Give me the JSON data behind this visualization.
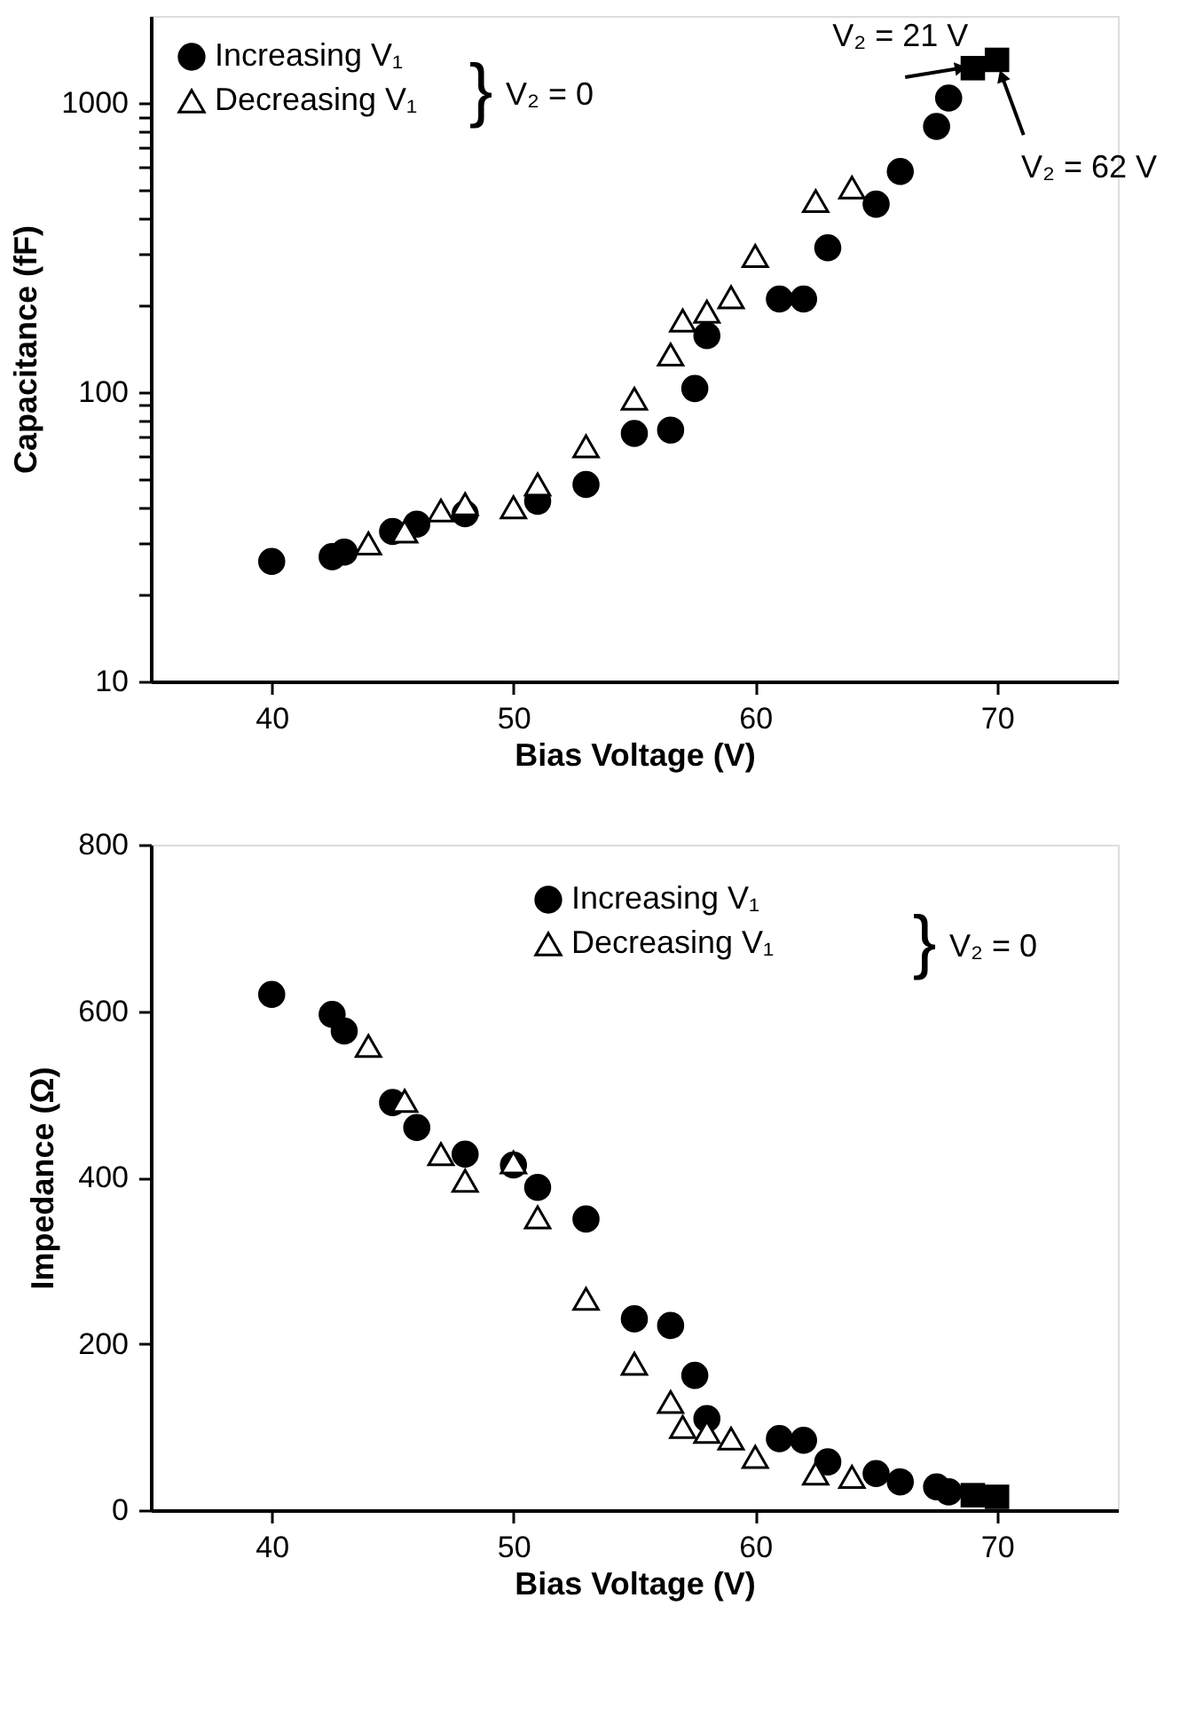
{
  "chart_data": [
    {
      "type": "scatter",
      "xlabel": "Bias Voltage (V)",
      "ylabel": "Capacitance (fF)",
      "log": "y",
      "grid": false,
      "legend": "top left",
      "xlim": [
        35,
        75
      ],
      "xticks": [
        40,
        50,
        60,
        70
      ],
      "ylim": [
        10,
        2000
      ],
      "yticks": [
        10,
        {
          "value": 20,
          "label": null
        },
        {
          "value": 30,
          "label": null
        },
        {
          "value": 40,
          "label": null
        },
        {
          "value": 50,
          "label": null
        },
        {
          "value": 60,
          "label": null
        },
        {
          "value": 70,
          "label": null
        },
        {
          "value": 80,
          "label": null
        },
        {
          "value": 90,
          "label": null
        },
        100,
        {
          "value": 200,
          "label": null
        },
        {
          "value": 300,
          "label": null
        },
        {
          "value": 400,
          "label": null
        },
        {
          "value": 500,
          "label": null
        },
        {
          "value": 600,
          "label": null
        },
        {
          "value": 700,
          "label": null
        },
        {
          "value": 800,
          "label": null
        },
        {
          "value": 900,
          "label": null
        },
        1000
      ],
      "series": [
        {
          "name": "Increasing V₁",
          "color": "#000000",
          "marker": "circle",
          "x": [
            40,
            42.5,
            43,
            45,
            46,
            48,
            51,
            53,
            55,
            56.5,
            57.5,
            58,
            61,
            62,
            63,
            65,
            66,
            67.5,
            68
          ],
          "values": [
            26,
            27,
            28,
            33,
            35,
            38,
            42,
            48,
            72,
            74,
            103,
            157,
            210,
            210,
            316,
            447,
            580,
            830,
            1040
          ]
        },
        {
          "name": "Decreasing V₁",
          "color": "#000000",
          "marker": "triangle",
          "x": [
            44,
            45.5,
            47,
            48,
            50,
            51,
            53,
            55,
            56.5,
            57,
            58,
            59,
            60,
            62.5,
            64
          ],
          "values": [
            30,
            33,
            39,
            41,
            40,
            48,
            65,
            95,
            135,
            177,
            190,
            213,
            296,
            458,
            510
          ]
        },
        {
          "color": "#000000",
          "marker": "square",
          "x": [
            69,
            70
          ],
          "values": [
            1320,
            1410
          ]
        }
      ],
      "annotations": [
        "}",
        "V₂ = 0",
        {
          "text": "V₂ = 21 V",
          "x": 69,
          "y": 1320
        },
        {
          "text": "V₂ = 62 V",
          "x": 70,
          "y": 1410
        }
      ]
    },
    {
      "type": "scatter",
      "xlabel": "Bias Voltage (V)",
      "ylabel": "Impedance (Ω)",
      "grid": false,
      "legend": "top right",
      "xlim": [
        35,
        75
      ],
      "xticks": [
        40,
        50,
        60,
        70
      ],
      "ylim": [
        0,
        800
      ],
      "yticks": [
        0,
        200,
        400,
        600,
        800
      ],
      "series": [
        {
          "name": "Increasing V₁",
          "color": "#000000",
          "marker": "circle",
          "x": [
            40,
            42.5,
            43,
            45,
            46,
            48,
            50,
            51,
            53,
            55,
            56.5,
            57.5,
            58,
            61,
            62,
            63,
            65,
            66,
            67.5,
            68
          ],
          "values": [
            620,
            596,
            576,
            490,
            460,
            428,
            415,
            388,
            350,
            230,
            222,
            162,
            110,
            86,
            84,
            58,
            44,
            34,
            28,
            22
          ]
        },
        {
          "name": "Decreasing V₁",
          "color": "#000000",
          "marker": "triangle",
          "x": [
            44,
            45.5,
            47,
            48,
            50,
            51,
            53,
            55,
            56.5,
            57,
            58,
            59,
            60,
            62.5,
            64
          ],
          "values": [
            558,
            492,
            428,
            396,
            418,
            352,
            254,
            176,
            130,
            100,
            94,
            86,
            64,
            44,
            40
          ]
        },
        {
          "color": "#000000",
          "marker": "square",
          "x": [
            69,
            70
          ],
          "values": [
            18,
            16
          ]
        }
      ],
      "annotations": [
        "}",
        "V₂ = 0"
      ]
    }
  ]
}
